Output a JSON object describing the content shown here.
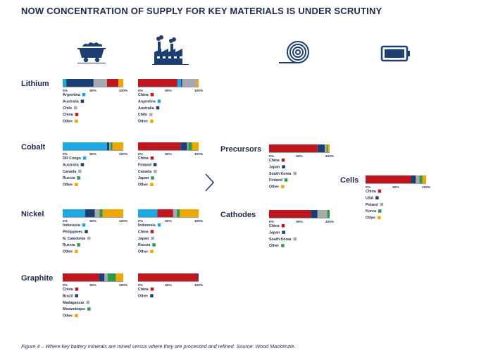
{
  "title": "NOW CONCENTRATION OF SUPPLY FOR KEY MATERIALS IS UNDER SCRUTINY",
  "caption": "Figure 4 – Where key battery minerals are mined versus where they are processed and refined. Source: Wood Mackenzie.",
  "colors": {
    "blue": "#1ea7e1",
    "navy": "#1c3f73",
    "gray": "#a7a9ac",
    "red": "#c0161e",
    "orange": "#f0a800",
    "green": "#2e9a48",
    "lightgray": "#c8c9cb"
  },
  "icons": [
    "mining-cart-icon",
    "factory-icon",
    "cable-coil-icon",
    "battery-icon"
  ],
  "chart_data": [
    {
      "type": "bar",
      "stacked": true,
      "material": "Lithium",
      "stage": "mining",
      "ticks": [
        "0%",
        "50%",
        "100%"
      ],
      "xlim": [
        0,
        100
      ],
      "series": [
        {
          "name": "Argentina",
          "value": 6,
          "color": "#1ea7e1"
        },
        {
          "name": "Australia",
          "value": 45,
          "color": "#1c3f73"
        },
        {
          "name": "Chile",
          "value": 22,
          "color": "#a7a9ac"
        },
        {
          "name": "China",
          "value": 19,
          "color": "#c0161e"
        },
        {
          "name": "Other",
          "value": 8,
          "color": "#f0a800"
        }
      ]
    },
    {
      "type": "bar",
      "stacked": true,
      "material": "Lithium",
      "stage": "refining",
      "ticks": [
        "0%",
        "50%",
        "100%"
      ],
      "xlim": [
        0,
        100
      ],
      "series": [
        {
          "name": "China",
          "value": 65,
          "color": "#c0161e"
        },
        {
          "name": "Argentina",
          "value": 6,
          "color": "#1ea7e1"
        },
        {
          "name": "Australia",
          "value": 2,
          "color": "#1c3f73"
        },
        {
          "name": "Chile",
          "value": 24,
          "color": "#a7a9ac"
        },
        {
          "name": "Other",
          "value": 3,
          "color": "#f0a800"
        }
      ]
    },
    {
      "type": "bar",
      "stacked": true,
      "material": "Cobalt",
      "stage": "mining",
      "ticks": [
        "0%",
        "50%",
        "100%"
      ],
      "xlim": [
        0,
        100
      ],
      "series": [
        {
          "name": "DR Congo",
          "value": 73,
          "color": "#1ea7e1"
        },
        {
          "name": "Australia",
          "value": 4,
          "color": "#1c3f73"
        },
        {
          "name": "Canada",
          "value": 2,
          "color": "#a7a9ac"
        },
        {
          "name": "Russia",
          "value": 3,
          "color": "#2e9a48"
        },
        {
          "name": "Other",
          "value": 18,
          "color": "#f0a800"
        }
      ]
    },
    {
      "type": "bar",
      "stacked": true,
      "material": "Cobalt",
      "stage": "refining",
      "ticks": [
        "0%",
        "50%",
        "100%"
      ],
      "xlim": [
        0,
        100
      ],
      "series": [
        {
          "name": "China",
          "value": 70,
          "color": "#c0161e"
        },
        {
          "name": "Finland",
          "value": 11,
          "color": "#1c3f73"
        },
        {
          "name": "Canada",
          "value": 2,
          "color": "#a7a9ac"
        },
        {
          "name": "Japan",
          "value": 6,
          "color": "#2e9a48"
        },
        {
          "name": "Other",
          "value": 11,
          "color": "#f0a800"
        }
      ]
    },
    {
      "type": "bar",
      "stacked": true,
      "material": "Nickel",
      "stage": "mining",
      "ticks": [
        "0%",
        "50%",
        "100%"
      ],
      "xlim": [
        0,
        100
      ],
      "series": [
        {
          "name": "Indonesia",
          "value": 37,
          "color": "#1ea7e1"
        },
        {
          "name": "Philippines",
          "value": 16,
          "color": "#1c3f73"
        },
        {
          "name": "N. Caledonia",
          "value": 8,
          "color": "#a7a9ac"
        },
        {
          "name": "Russia",
          "value": 5,
          "color": "#2e9a48"
        },
        {
          "name": "Other",
          "value": 34,
          "color": "#f0a800"
        }
      ]
    },
    {
      "type": "bar",
      "stacked": true,
      "material": "Nickel",
      "stage": "refining",
      "ticks": [
        "0%",
        "50%",
        "100%"
      ],
      "xlim": [
        0,
        100
      ],
      "series": [
        {
          "name": "Indonesia",
          "value": 32,
          "color": "#1ea7e1"
        },
        {
          "name": "China",
          "value": 26,
          "color": "#c0161e"
        },
        {
          "name": "Japan",
          "value": 6,
          "color": "#a7a9ac"
        },
        {
          "name": "Russia",
          "value": 5,
          "color": "#2e9a48"
        },
        {
          "name": "Other",
          "value": 31,
          "color": "#f0a800"
        }
      ]
    },
    {
      "type": "bar",
      "stacked": true,
      "material": "Graphite",
      "stage": "mining",
      "ticks": [
        "0%",
        "50%",
        "100%"
      ],
      "xlim": [
        0,
        100
      ],
      "series": [
        {
          "name": "China",
          "value": 60,
          "color": "#c0161e"
        },
        {
          "name": "Brazil",
          "value": 9,
          "color": "#1c3f73"
        },
        {
          "name": "Madagascar",
          "value": 5,
          "color": "#a7a9ac"
        },
        {
          "name": "Mozambique",
          "value": 14,
          "color": "#2e9a48"
        },
        {
          "name": "Other",
          "value": 12,
          "color": "#f0a800"
        }
      ]
    },
    {
      "type": "bar",
      "stacked": true,
      "material": "Graphite",
      "stage": "refining",
      "ticks": [
        "0%",
        "50%",
        "100%"
      ],
      "xlim": [
        0,
        100
      ],
      "series": [
        {
          "name": "China",
          "value": 99,
          "color": "#c0161e"
        },
        {
          "name": "Other",
          "value": 1,
          "color": "#1c3f73"
        }
      ]
    },
    {
      "type": "bar",
      "stacked": true,
      "material": "Precursors",
      "stage": "components",
      "ticks": [
        "0%",
        "50%",
        "100%"
      ],
      "xlim": [
        0,
        100
      ],
      "series": [
        {
          "name": "China",
          "value": 80,
          "color": "#c0161e"
        },
        {
          "name": "Japan",
          "value": 12,
          "color": "#1c3f73"
        },
        {
          "name": "South Korea",
          "value": 3,
          "color": "#a7a9ac"
        },
        {
          "name": "Finland",
          "value": 2,
          "color": "#2e9a48"
        },
        {
          "name": "Other",
          "value": 3,
          "color": "#f0a800"
        }
      ]
    },
    {
      "type": "bar",
      "stacked": true,
      "material": "Cathodes",
      "stage": "components",
      "ticks": [
        "0%",
        "50%",
        "100%"
      ],
      "xlim": [
        0,
        100
      ],
      "series": [
        {
          "name": "China",
          "value": 69,
          "color": "#c0161e"
        },
        {
          "name": "Japan",
          "value": 11,
          "color": "#1c3f73"
        },
        {
          "name": "South Korea",
          "value": 16,
          "color": "#a7a9ac"
        },
        {
          "name": "Other",
          "value": 4,
          "color": "#2e9a48"
        }
      ]
    },
    {
      "type": "bar",
      "stacked": true,
      "material": "Cells",
      "stage": "cells",
      "ticks": [
        "0%",
        "50%",
        "100%"
      ],
      "xlim": [
        0,
        100
      ],
      "series": [
        {
          "name": "China",
          "value": 75,
          "color": "#c0161e"
        },
        {
          "name": "USA",
          "value": 8,
          "color": "#1c3f73"
        },
        {
          "name": "Poland",
          "value": 6,
          "color": "#a7a9ac"
        },
        {
          "name": "Korea",
          "value": 5,
          "color": "#2e9a48"
        },
        {
          "name": "Other",
          "value": 6,
          "color": "#f0a800"
        }
      ]
    }
  ]
}
